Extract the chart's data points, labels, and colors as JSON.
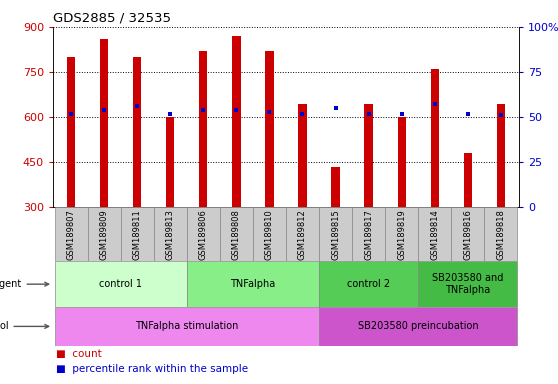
{
  "title": "GDS2885 / 32535",
  "samples": [
    "GSM189807",
    "GSM189809",
    "GSM189811",
    "GSM189813",
    "GSM189806",
    "GSM189808",
    "GSM189810",
    "GSM189812",
    "GSM189815",
    "GSM189817",
    "GSM189819",
    "GSM189814",
    "GSM189816",
    "GSM189818"
  ],
  "count_values": [
    800,
    860,
    800,
    600,
    820,
    870,
    820,
    645,
    435,
    645,
    600,
    760,
    480,
    645
  ],
  "percentile_values": [
    52,
    54,
    56,
    52,
    54,
    54,
    53,
    52,
    55,
    52,
    52,
    57,
    52,
    51
  ],
  "bar_color": "#cc0000",
  "dot_color": "#0000cc",
  "ylim_left": [
    300,
    900
  ],
  "ylim_right": [
    0,
    100
  ],
  "yticks_left": [
    300,
    450,
    600,
    750,
    900
  ],
  "yticks_right": [
    0,
    25,
    50,
    75,
    100
  ],
  "ytick_labels_left": [
    "300",
    "450",
    "600",
    "750",
    "900"
  ],
  "ytick_labels_right": [
    "0",
    "25",
    "50",
    "75",
    "100%"
  ],
  "bar_width": 0.25,
  "agent_groups": [
    {
      "label": "control 1",
      "start": 0,
      "end": 3,
      "color": "#ccffcc"
    },
    {
      "label": "TNFalpha",
      "start": 4,
      "end": 7,
      "color": "#88ee88"
    },
    {
      "label": "control 2",
      "start": 8,
      "end": 10,
      "color": "#55cc55"
    },
    {
      "label": "SB203580 and\nTNFalpha",
      "start": 11,
      "end": 13,
      "color": "#44bb44"
    }
  ],
  "protocol_groups": [
    {
      "label": "TNFalpha stimulation",
      "start": 0,
      "end": 7,
      "color": "#ee88ee"
    },
    {
      "label": "SB203580 preincubation",
      "start": 8,
      "end": 13,
      "color": "#cc55cc"
    }
  ],
  "label_color_left": "#cc0000",
  "label_color_right": "#0000cc",
  "xtick_bg": "#cccccc",
  "plot_bg": "#ffffff",
  "grid_color": "#000000"
}
